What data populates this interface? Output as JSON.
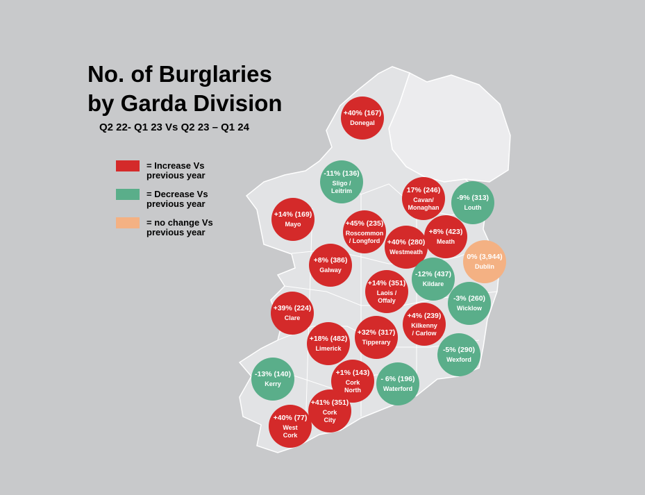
{
  "title": {
    "lines": [
      "No. of Burglaries",
      "by Garda Division"
    ],
    "subtitle": "Q2 22- Q1 23 Vs Q2 23 – Q1 24"
  },
  "legend": [
    {
      "color": "#d42a2a",
      "lines": [
        "= Increase Vs",
        "previous year"
      ]
    },
    {
      "color": "#5aae8a",
      "lines": [
        "= Decrease Vs",
        "previous year"
      ]
    },
    {
      "color": "#f4b183",
      "lines": [
        "= no change Vs",
        "previous year"
      ]
    }
  ],
  "divisions": [
    {
      "stat": "+40% (167)",
      "name": [
        "Donegal"
      ],
      "color": "#d42a2a"
    },
    {
      "stat": "-11% (136)",
      "name": [
        "Sligo /",
        "Leitrim"
      ],
      "color": "#5aae8a"
    },
    {
      "stat": "17% (246)",
      "name": [
        "Cavan/",
        "Monaghan"
      ],
      "color": "#d42a2a"
    },
    {
      "stat": "-9% (313)",
      "name": [
        "Louth"
      ],
      "color": "#5aae8a"
    },
    {
      "stat": "+14% (169)",
      "name": [
        "Mayo"
      ],
      "color": "#d42a2a"
    },
    {
      "stat": "+45% (235)",
      "name": [
        "Roscommon",
        "/ Longford"
      ],
      "color": "#d42a2a"
    },
    {
      "stat": "+8% (423)",
      "name": [
        "Meath"
      ],
      "color": "#d42a2a"
    },
    {
      "stat": "+40% (280)",
      "name": [
        "Westmeath"
      ],
      "color": "#d42a2a"
    },
    {
      "stat": "0% (3,944)",
      "name": [
        "Dublin"
      ],
      "color": "#f4b183"
    },
    {
      "stat": "+8% (386)",
      "name": [
        "Galway"
      ],
      "color": "#d42a2a"
    },
    {
      "stat": "-12% (437)",
      "name": [
        "Kildare"
      ],
      "color": "#5aae8a"
    },
    {
      "stat": "+14% (351)",
      "name": [
        "Laois /",
        "Offaly"
      ],
      "color": "#d42a2a"
    },
    {
      "stat": "-3% (260)",
      "name": [
        "Wicklow"
      ],
      "color": "#5aae8a"
    },
    {
      "stat": "+39% (224)",
      "name": [
        "Clare"
      ],
      "color": "#d42a2a"
    },
    {
      "stat": "+4% (239)",
      "name": [
        "Kilkenny",
        "/ Carlow"
      ],
      "color": "#d42a2a"
    },
    {
      "stat": "+32% (317)",
      "name": [
        "Tipperary"
      ],
      "color": "#d42a2a"
    },
    {
      "stat": "+18% (482)",
      "name": [
        "Limerick"
      ],
      "color": "#d42a2a"
    },
    {
      "stat": "-5% (290)",
      "name": [
        "Wexford"
      ],
      "color": "#5aae8a"
    },
    {
      "stat": "-13% (140)",
      "name": [
        "Kerry"
      ],
      "color": "#5aae8a"
    },
    {
      "stat": "+1% (143)",
      "name": [
        "Cork",
        "North"
      ],
      "color": "#d42a2a"
    },
    {
      "stat": "- 6% (196)",
      "name": [
        "Waterford"
      ],
      "color": "#5aae8a"
    },
    {
      "stat": "+41% (351)",
      "name": [
        "Cork",
        "City"
      ],
      "color": "#d42a2a"
    },
    {
      "stat": "+40% (77)",
      "name": [
        "West",
        "Cork"
      ],
      "color": "#d42a2a"
    }
  ]
}
